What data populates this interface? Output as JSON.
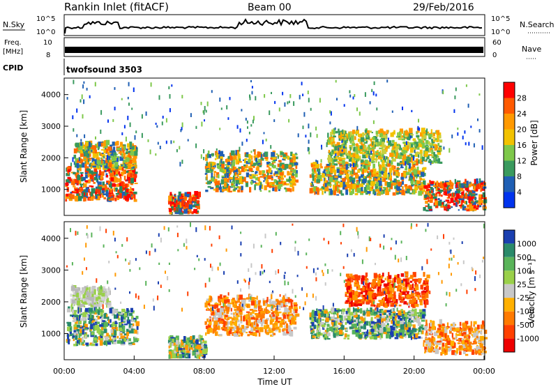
{
  "header": {
    "station": "Rankin Inlet (fitACF)",
    "beam": "Beam 00",
    "date": "29/Feb/2016"
  },
  "top_panels": {
    "nsky_label": "N.Sky",
    "nsearch_label": "N.Search",
    "nsky_ticks": [
      "10^5",
      "10^0"
    ],
    "nsearch_ticks": [
      "10^5",
      "10^0"
    ],
    "freq_label": "Freq.",
    "freq_unit": "[MHz]",
    "freq_ticks": [
      "10",
      "8"
    ],
    "nave_label": "Nave",
    "nave_ticks": [
      "60",
      "0"
    ],
    "cpid_label": "CPID",
    "cpid_value": "twofsound 3503"
  },
  "chart_data": [
    {
      "type": "heatmap",
      "name": "power-panel",
      "ylabel": "Slant Range [km]",
      "yticks": [
        "1000",
        "2000",
        "3000",
        "4000"
      ],
      "ylim": [
        200,
        4500
      ],
      "xlim": [
        0,
        24
      ],
      "colorbar": {
        "label": "Power [dB]",
        "ticks": [
          "28",
          "24",
          "20",
          "16",
          "12",
          "8",
          "4"
        ],
        "colors": [
          "#ff0000",
          "#ff5a00",
          "#ff9900",
          "#f2c200",
          "#7ec84a",
          "#3a9a5e",
          "#1f5fb4",
          "#0033ee"
        ]
      },
      "regions": [
        {
          "t0": 0.0,
          "t1": 4.0,
          "r0": 600,
          "r1": 1600,
          "level": "high"
        },
        {
          "t0": 0.5,
          "t1": 4.0,
          "r0": 1600,
          "r1": 2400,
          "level": "mid"
        },
        {
          "t0": 5.9,
          "t1": 7.6,
          "r0": 200,
          "r1": 800,
          "level": "high"
        },
        {
          "t0": 8.0,
          "t1": 13.2,
          "r0": 900,
          "r1": 2100,
          "level": "mid"
        },
        {
          "t0": 14.0,
          "t1": 20.5,
          "r0": 800,
          "r1": 1800,
          "level": "mid"
        },
        {
          "t0": 15.0,
          "t1": 21.5,
          "r0": 1800,
          "r1": 2800,
          "level": "low"
        },
        {
          "t0": 20.5,
          "t1": 24.0,
          "r0": 300,
          "r1": 1200,
          "level": "high"
        }
      ]
    },
    {
      "type": "heatmap",
      "name": "velocity-panel",
      "ylabel": "Slant Range [km]",
      "yticks": [
        "1000",
        "2000",
        "3000",
        "4000"
      ],
      "ylim": [
        200,
        4500
      ],
      "xlim": [
        0,
        24
      ],
      "xticks": [
        "00:00",
        "04:00",
        "08:00",
        "12:00",
        "16:00",
        "20:00",
        "00:00"
      ],
      "xlabel": "Time UT",
      "colorbar": {
        "label": "Velocity [m s⁻¹]",
        "ticks": [
          "1000",
          "500",
          "100",
          "25",
          "-25",
          "-100",
          "-500",
          "-1000"
        ],
        "colors": [
          "#1a3fb0",
          "#2a8a6a",
          "#5ab45a",
          "#9ad04a",
          "#c8c8c8",
          "#ffb000",
          "#ff7a00",
          "#ff4000",
          "#ee0000"
        ]
      },
      "regions": [
        {
          "t0": 0.0,
          "t1": 4.1,
          "r0": 600,
          "r1": 1700,
          "level": "pos"
        },
        {
          "t0": 0.3,
          "t1": 2.5,
          "r0": 1800,
          "r1": 2400,
          "level": "zero"
        },
        {
          "t0": 5.9,
          "t1": 8.0,
          "r0": 200,
          "r1": 800,
          "level": "pos"
        },
        {
          "t0": 8.0,
          "t1": 13.2,
          "r0": 900,
          "r1": 2100,
          "level": "neg"
        },
        {
          "t0": 14.0,
          "t1": 20.5,
          "r0": 800,
          "r1": 1700,
          "level": "pos"
        },
        {
          "t0": 16.0,
          "t1": 20.7,
          "r0": 1800,
          "r1": 2800,
          "level": "strongneg"
        },
        {
          "t0": 20.5,
          "t1": 24.0,
          "r0": 300,
          "r1": 1300,
          "level": "neg"
        }
      ]
    }
  ]
}
